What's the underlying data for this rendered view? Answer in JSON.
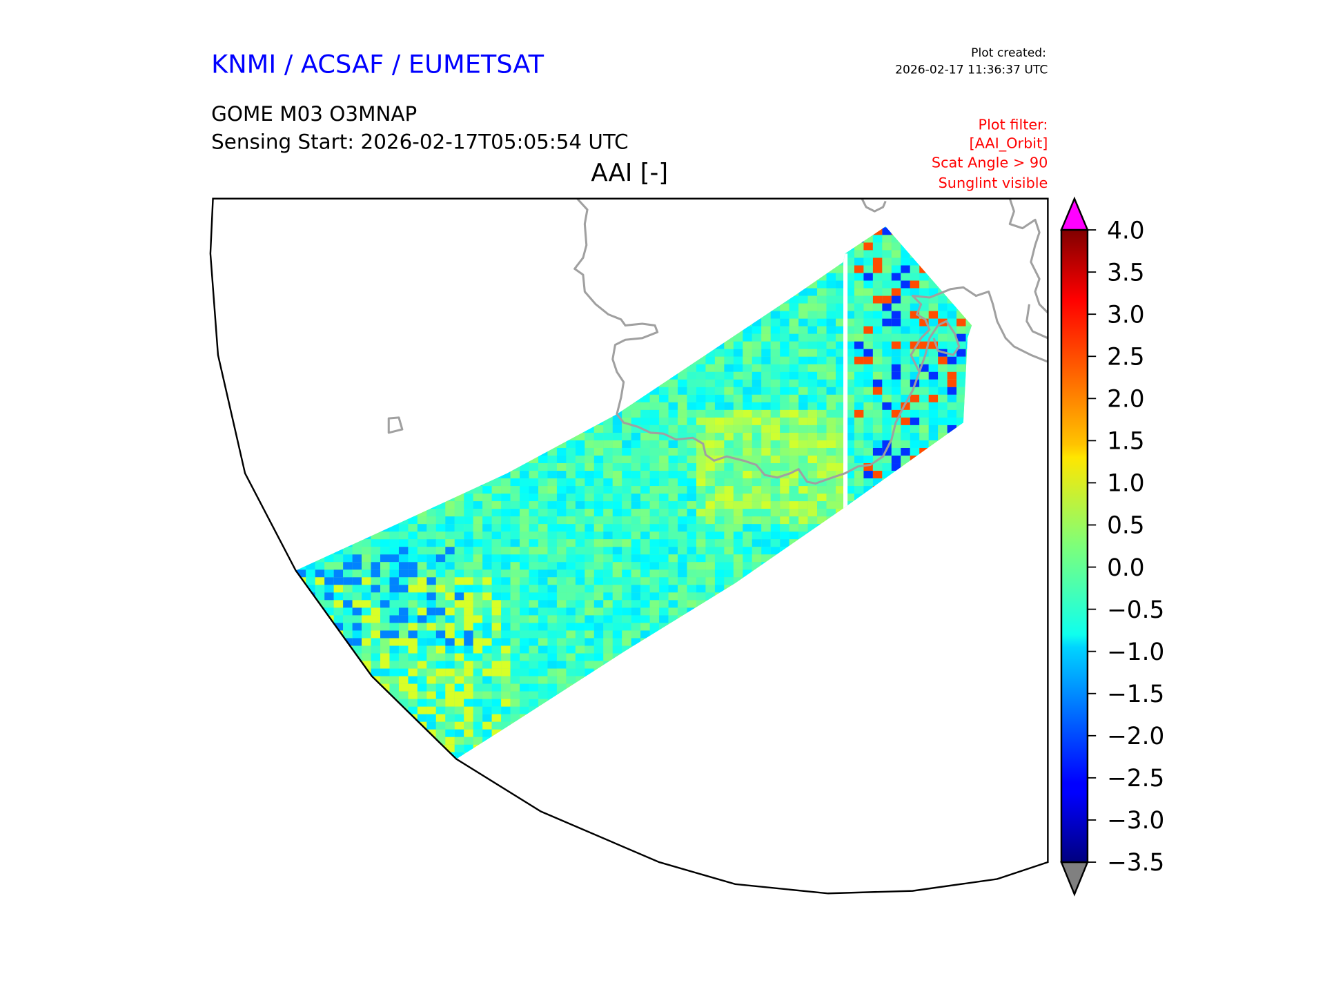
{
  "header": {
    "org": "KNMI / ACSAF / EUMETSAT",
    "created_label": "Plot created:",
    "created_time": "2026-02-17 11:36:37 UTC",
    "product": "GOME M03 O3MNAP",
    "sensing_start": "Sensing Start: 2026-02-17T05:05:54 UTC",
    "title": "AAI [-]",
    "filter_lines": [
      "Plot filter:",
      "[AAI_Orbit]",
      "Scat Angle > 90",
      "Sunglint visible"
    ]
  },
  "colors": {
    "org": "#0000ff",
    "filter": "#ff0000",
    "coast": "#a0a0a0",
    "over": "#ff00ff",
    "under": "#808080"
  },
  "chart_data": {
    "type": "heatmap",
    "title": "AAI [-]",
    "variable": "AAI",
    "colormap": "jet",
    "vmin": -3.5,
    "vmax": 4.0,
    "colorbar_ticks": [
      "4.0",
      "3.5",
      "3.0",
      "2.5",
      "2.0",
      "1.5",
      "1.0",
      "0.5",
      "0.0",
      "−0.5",
      "−1.0",
      "−1.5",
      "−2.0",
      "−2.5",
      "−3.0",
      "−3.5"
    ],
    "extend": "both",
    "typical_values": [
      -1.0,
      1.0
    ]
  }
}
